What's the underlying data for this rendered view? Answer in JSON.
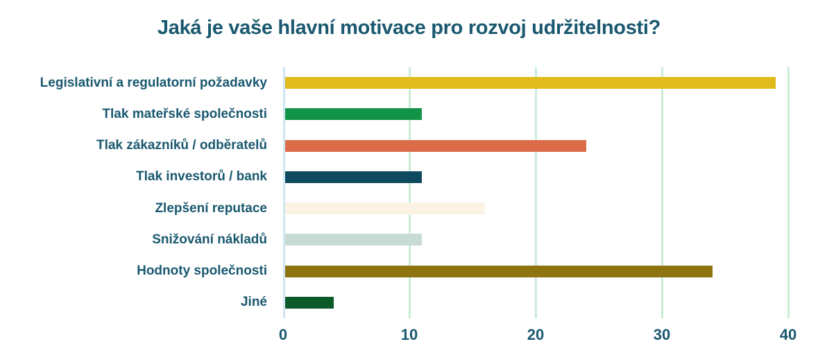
{
  "title": "Jaká je vaše hlavní motivace pro rozvoj udržitelnosti?",
  "colors": {
    "text": "#19586f",
    "gridline": "#c9edd6",
    "zero_axis": "#cfe6f2",
    "background": "#ffffff"
  },
  "chart_data": {
    "type": "bar",
    "orientation": "horizontal",
    "title": "Jaká je vaše hlavní motivace pro rozvoj udržitelnosti?",
    "categories": [
      "Legislativní a regulatorní požadavky",
      "Tlak mateřské společnosti",
      "Tlak zákazníků / odběratelů",
      "Tlak investorů / bank",
      "Zlepšení reputace",
      "Snižování nákladů",
      "Hodnoty společnosti",
      "Jiné"
    ],
    "values": [
      39,
      11,
      24,
      11,
      16,
      11,
      34,
      4
    ],
    "bar_colors": [
      "#e1ba1c",
      "#129448",
      "#dc6b4a",
      "#0d4a5f",
      "#faf3e3",
      "#c7dad5",
      "#8d7411",
      "#0b5b2a"
    ],
    "xlabel": "",
    "ylabel": "",
    "xlim": [
      0,
      40
    ],
    "x_ticks": [
      0,
      10,
      20,
      30,
      40
    ],
    "grid": true,
    "legend": false
  }
}
